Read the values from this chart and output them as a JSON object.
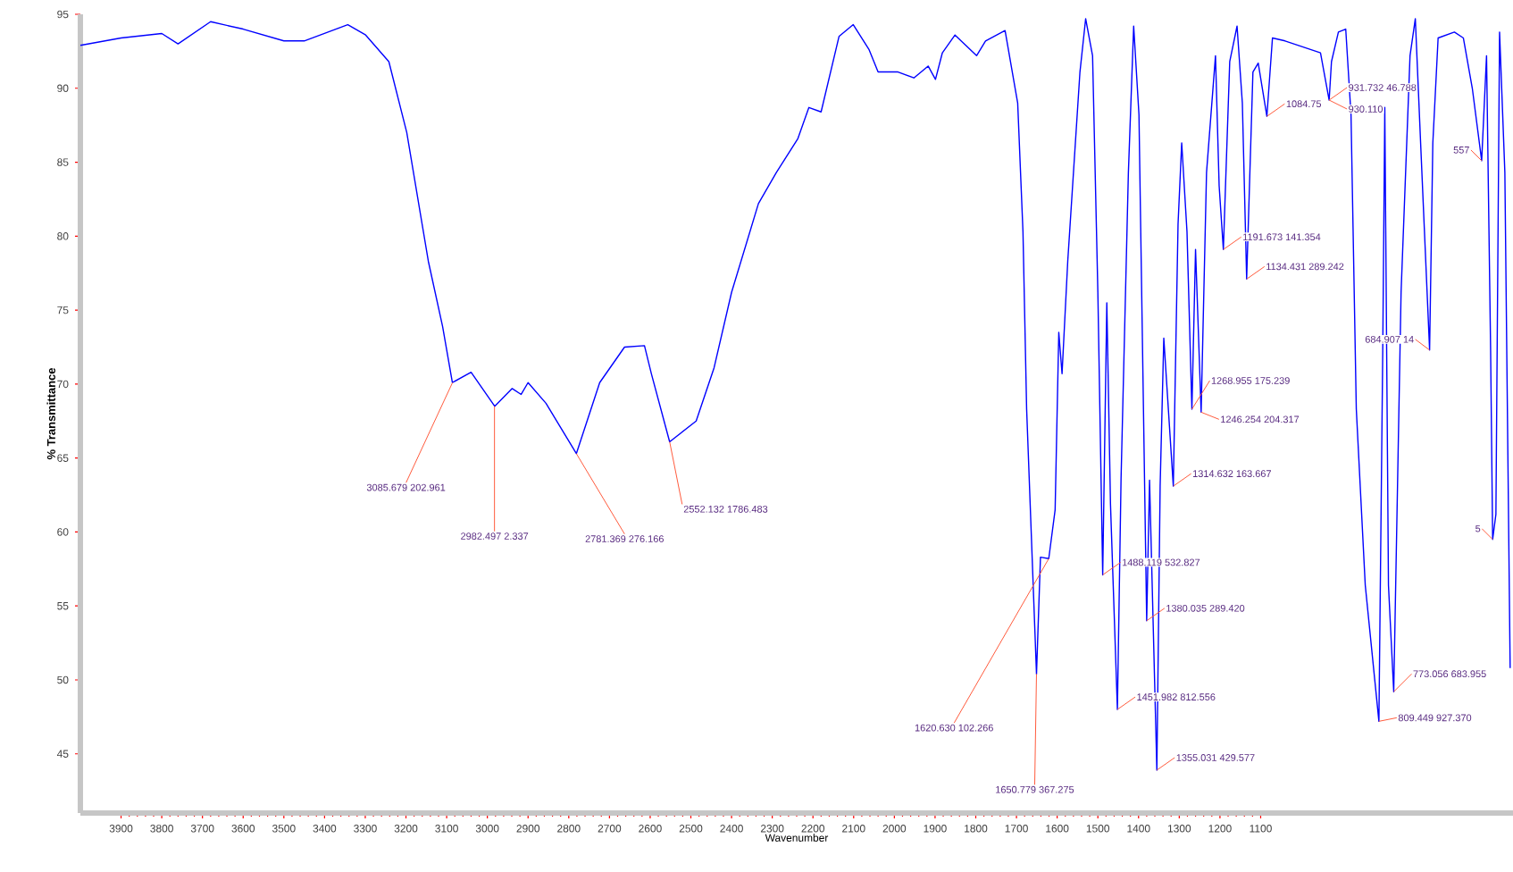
{
  "chart_data": {
    "type": "line",
    "xlabel": "Wavenumber",
    "ylabel": "% Transmittance",
    "color": "#0000ff",
    "xlim": [
      4000,
      480
    ],
    "ylim": [
      41,
      95
    ],
    "xticks": [
      3900,
      3800,
      3700,
      3600,
      3500,
      3400,
      3300,
      3200,
      3100,
      3000,
      2900,
      2800,
      2700,
      2600,
      2500,
      2400,
      2300,
      2200,
      2100,
      2000,
      1900,
      1800,
      1700,
      1600,
      1500,
      1400,
      1300,
      1200,
      1100
    ],
    "yticks": [
      45,
      50,
      55,
      60,
      65,
      70,
      75,
      80,
      85,
      90,
      95
    ],
    "x": [
      4000,
      3900,
      3800,
      3760,
      3680,
      3600,
      3500,
      3450,
      3343,
      3299,
      3242,
      3198,
      3145,
      3110,
      3086,
      3040,
      2982,
      2939,
      2917,
      2900,
      2856,
      2781.369,
      2724,
      2663,
      2614,
      2597,
      2552.132,
      2487,
      2443,
      2400,
      2334,
      2290,
      2237,
      2210,
      2180,
      2136,
      2101,
      2062,
      2040,
      1991,
      1952,
      1917,
      1899,
      1882,
      1851,
      1798,
      1776,
      1728,
      1697,
      1684,
      1675,
      1650.779,
      1641,
      1620.63,
      1605,
      1596,
      1588,
      1574,
      1544,
      1530,
      1513,
      1500,
      1488.119,
      1478,
      1469,
      1451.982,
      1443,
      1425,
      1412,
      1399,
      1380.035,
      1373,
      1355.031,
      1347,
      1338,
      1314.632,
      1303,
      1294,
      1281,
      1268.955,
      1260,
      1246.254,
      1233,
      1211,
      1202,
      1191.673,
      1176,
      1158,
      1145,
      1134.431,
      1119,
      1106,
      1084.75,
      1071,
      1040,
      953,
      931.732,
      926,
      909,
      891,
      878,
      865,
      843,
      809.449,
      800,
      795,
      786,
      773.056,
      755,
      733,
      720,
      707,
      684.907,
      677,
      664,
      624,
      602,
      580,
      557,
      545,
      535,
      530,
      522,
      513,
      500,
      487
    ],
    "values": [
      92.9,
      93.4,
      93.7,
      93.0,
      94.5,
      94.0,
      93.2,
      93.2,
      94.3,
      93.6,
      91.8,
      87.0,
      78.3,
      73.9,
      70.1,
      70.8,
      68.5,
      69.7,
      69.3,
      70.1,
      68.7,
      65.3,
      70.1,
      72.5,
      72.6,
      70.7,
      66.1,
      67.5,
      71.1,
      76.2,
      82.2,
      84.3,
      86.6,
      88.7,
      88.4,
      93.5,
      94.3,
      92.6,
      91.1,
      91.1,
      90.7,
      91.5,
      90.6,
      92.4,
      93.6,
      92.2,
      93.2,
      93.9,
      89.0,
      80.3,
      68.3,
      50.4,
      58.3,
      58.2,
      61.5,
      73.5,
      70.7,
      78.3,
      91.1,
      94.7,
      92.2,
      76.2,
      57.1,
      75.5,
      61.9,
      48.0,
      63.6,
      84.3,
      94.2,
      88.2,
      54.0,
      63.5,
      43.9,
      63.1,
      73.1,
      63.1,
      80.8,
      86.3,
      80.3,
      68.3,
      79.1,
      68.1,
      84.3,
      92.2,
      83.4,
      79.1,
      91.8,
      94.2,
      89.0,
      77.1,
      91.1,
      91.7,
      88.1,
      93.4,
      93.2,
      92.4,
      89.2,
      91.8,
      93.8,
      94.0,
      88.2,
      68.3,
      56.4,
      47.2,
      72.3,
      88.7,
      56.4,
      49.2,
      76.2,
      92.2,
      94.7,
      86.3,
      72.3,
      86.3,
      93.4,
      93.8,
      93.4,
      90.0,
      85.1,
      92.2,
      72.3,
      59.5,
      61.2,
      93.8,
      84.3,
      50.8
    ],
    "annotations": [
      {
        "text": "3085.679  202.961",
        "x": 3085.679,
        "y": 70.1
      },
      {
        "text": "2982.497  2.337",
        "x": 2982.497,
        "y": 68.5
      },
      {
        "text": "2781.369  276.166",
        "x": 2781.369,
        "y": 65.3
      },
      {
        "text": "2552.132  1786.483",
        "x": 2552.132,
        "y": 66.1
      },
      {
        "text": "1650.779  367.275",
        "x": 1650.779,
        "y": 50.4
      },
      {
        "text": "1620.630  102.266",
        "x": 1620.63,
        "y": 58.2
      },
      {
        "text": "1488.119  532.827",
        "x": 1488.119,
        "y": 57.1
      },
      {
        "text": "1451.982  812.556",
        "x": 1451.982,
        "y": 48.0
      },
      {
        "text": "1380.035  289.420",
        "x": 1380.035,
        "y": 54.0
      },
      {
        "text": "1355.031  429.577",
        "x": 1355.031,
        "y": 43.9
      },
      {
        "text": "1314.632  163.667",
        "x": 1314.632,
        "y": 63.1
      },
      {
        "text": "1268.955  175.239",
        "x": 1268.955,
        "y": 68.3
      },
      {
        "text": "1246.254  204.317",
        "x": 1246.254,
        "y": 68.1
      },
      {
        "text": "1191.673  141.354",
        "x": 1191.673,
        "y": 79.1
      },
      {
        "text": "1134.431  289.242",
        "x": 1134.431,
        "y": 77.1
      },
      {
        "text": "1084.75",
        "x": 1084.75,
        "y": 88.1
      },
      {
        "text": "931.732  46.788",
        "x": 931.732,
        "y": 89.2
      },
      {
        "text": "930.110",
        "x": 931.732,
        "y": 89.2
      },
      {
        "text": "809.449  927.370",
        "x": 809.449,
        "y": 47.2
      },
      {
        "text": "773.056  683.955",
        "x": 773.056,
        "y": 49.2
      },
      {
        "text": "684.907  14",
        "x": 684.907,
        "y": 72.3
      },
      {
        "text": "557",
        "x": 557,
        "y": 85.1
      },
      {
        "text": "5",
        "x": 530,
        "y": 59.5
      }
    ]
  }
}
